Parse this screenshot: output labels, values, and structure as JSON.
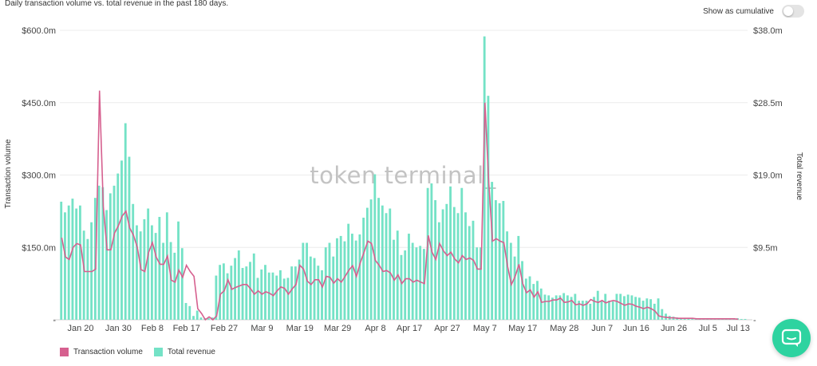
{
  "header": {
    "subtitle": "Daily transaction volume vs. total revenue in the past 180 days.",
    "cumulative_toggle_label": "Show as cumulative"
  },
  "watermark": "token terminal_",
  "colors": {
    "transaction_volume": "#d6608f",
    "total_revenue": "#74e2c6",
    "chat_button": "#2ed3a0"
  },
  "legend": [
    {
      "label": "Transaction volume",
      "color": "#d6608f"
    },
    {
      "label": "Total revenue",
      "color": "#74e2c6"
    }
  ],
  "icons": {
    "chat": "chat-bubble-icon"
  },
  "chart_data": {
    "type": "bar+line",
    "subtitle": "Daily transaction volume vs. total revenue in the past 180 days.",
    "ylabel_left": "Transaction volume",
    "ylabel_right": "Total revenue",
    "ylim_left": [
      0,
      600
    ],
    "ylim_right": [
      0,
      38
    ],
    "yticks_left": [
      "$150.0m",
      "$300.0m",
      "$450.0m",
      "$600.0m"
    ],
    "yticks_right": [
      "$9.5m",
      "$19.0m",
      "$28.5m",
      "$38.0m"
    ],
    "x_tick_labels": [
      "Jan 20",
      "Jan 30",
      "Feb 8",
      "Feb 17",
      "Feb 27",
      "Mar 9",
      "Mar 19",
      "Mar 29",
      "Apr 8",
      "Apr 17",
      "Apr 27",
      "May 7",
      "May 17",
      "May 28",
      "Jun 7",
      "Jun 16",
      "Jun 26",
      "Jul 5",
      "Jul 13"
    ],
    "x_tick_day_index": [
      5,
      15,
      24,
      33,
      43,
      53,
      63,
      73,
      83,
      92,
      102,
      112,
      122,
      133,
      143,
      152,
      162,
      171,
      179
    ],
    "grid": "horizontal",
    "legend_position": "bottom-left",
    "series": [
      {
        "name": "Total revenue",
        "type": "bar",
        "axis": "right",
        "unit": "$m",
        "values": [
          15.5,
          14.1,
          15.0,
          15.9,
          14.6,
          15.0,
          11.7,
          10.6,
          12.8,
          16.0,
          17.6,
          17.4,
          14.4,
          16.6,
          17.6,
          19.2,
          20.9,
          25.8,
          21.4,
          15.2,
          12.4,
          11.6,
          13.2,
          14.6,
          12.4,
          11.4,
          13.5,
          10.1,
          14.1,
          10.2,
          8.8,
          12.9,
          9.4,
          2.2,
          1.8,
          0.5,
          1.2,
          0.3,
          0.2,
          0.2,
          0.3,
          5.8,
          7.2,
          7.4,
          6.1,
          7.1,
          8.1,
          9.1,
          6.8,
          7.0,
          7.6,
          8.7,
          5.5,
          6.6,
          7.2,
          6.2,
          6.2,
          5.8,
          6.5,
          5.4,
          5.5,
          7.0,
          7.0,
          7.9,
          10.1,
          10.1,
          8.3,
          8.1,
          7.1,
          6.5,
          9.5,
          10.1,
          8.3,
          10.7,
          11.0,
          10.3,
          12.6,
          11.3,
          10.4,
          11.2,
          13.4,
          14.7,
          15.8,
          19.1,
          16.0,
          15.0,
          14.0,
          14.6,
          10.5,
          11.7,
          8.5,
          9.1,
          11.3,
          10.1,
          9.5,
          9.7,
          9.3,
          17.3,
          17.9,
          15.7,
          12.8,
          14.5,
          15.2,
          17.5,
          14.8,
          14.0,
          17.3,
          14.1,
          12.3,
          13.0,
          9.5,
          9.5,
          37.2,
          29.4,
          18.1,
          15.7,
          15.3,
          15.6,
          11.6,
          10.1,
          8.3,
          11.0,
          7.7,
          5.4,
          5.7,
          4.7,
          5.1,
          4.1,
          3.3,
          3.2,
          2.9,
          3.2,
          3.2,
          3.5,
          3.2,
          3.0,
          3.4,
          2.5,
          2.5,
          2.5,
          2.1,
          3.0,
          3.8,
          2.5,
          3.4,
          2.5,
          2.4,
          3.4,
          3.4,
          3.1,
          3.3,
          3.2,
          3.0,
          2.9,
          2.5,
          2.8,
          2.7,
          2.1,
          2.8,
          1.4,
          0.8,
          0.5,
          0.4,
          0.3,
          0.2,
          0.2,
          0.2,
          0.2,
          0.2,
          0.2,
          0.2,
          0.2,
          0.2,
          0.2,
          0.2,
          0.2,
          0.2,
          0.2,
          0.2,
          0.2,
          0.1,
          0.1
        ]
      },
      {
        "name": "Transaction volume",
        "type": "line",
        "axis": "left",
        "unit": "$m",
        "values": [
          170,
          130,
          125,
          150,
          158,
          155,
          100,
          100,
          100,
          105,
          475,
          235,
          145,
          145,
          180,
          195,
          215,
          225,
          190,
          175,
          150,
          104,
          100,
          140,
          160,
          130,
          115,
          115,
          132,
          82,
          78,
          103,
          88,
          113,
          100,
          90,
          23,
          13,
          0,
          6,
          0,
          8,
          53,
          60,
          83,
          63,
          67,
          70,
          73,
          73,
          64,
          53,
          60,
          53,
          58,
          55,
          50,
          60,
          68,
          65,
          53,
          64,
          73,
          113,
          105,
          80,
          73,
          83,
          83,
          68,
          90,
          88,
          76,
          85,
          78,
          90,
          103,
          112,
          90,
          118,
          140,
          163,
          158,
          123,
          113,
          100,
          102,
          97,
          82,
          93,
          75,
          85,
          85,
          78,
          82,
          78,
          75,
          175,
          140,
          125,
          158,
          143,
          133,
          140,
          126,
          118,
          133,
          125,
          128,
          123,
          105,
          105,
          450,
          285,
          163,
          168,
          163,
          160,
          110,
          73,
          90,
          115,
          75,
          56,
          62,
          47,
          58,
          36,
          38,
          38,
          41,
          41,
          45,
          36,
          37,
          40,
          31,
          33,
          30,
          33,
          42,
          38,
          36,
          40,
          35,
          38,
          40,
          38,
          34,
          30,
          33,
          32,
          28,
          26,
          23,
          26,
          23,
          18,
          8,
          6,
          5,
          4,
          4,
          3,
          3,
          3,
          3,
          3,
          2,
          2,
          2,
          2,
          2,
          2,
          2,
          2,
          2,
          2,
          2,
          1
        ]
      }
    ]
  }
}
